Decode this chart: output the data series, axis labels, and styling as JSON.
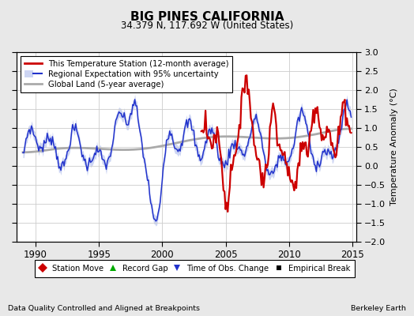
{
  "title": "BIG PINES CALIFORNIA",
  "subtitle": "34.379 N, 117.692 W (United States)",
  "ylabel": "Temperature Anomaly (°C)",
  "xlabel_left": "Data Quality Controlled and Aligned at Breakpoints",
  "xlabel_right": "Berkeley Earth",
  "xlim": [
    1988.5,
    2015.3
  ],
  "ylim": [
    -2,
    3
  ],
  "yticks": [
    -2,
    -1.5,
    -1,
    -0.5,
    0,
    0.5,
    1,
    1.5,
    2,
    2.5,
    3
  ],
  "xticks": [
    1990,
    1995,
    2000,
    2005,
    2010,
    2015
  ],
  "legend_station": "This Temperature Station (12-month average)",
  "legend_regional": "Regional Expectation with 95% uncertainty",
  "legend_global": "Global Land (5-year average)",
  "legend_station_move": "Station Move",
  "legend_record_gap": "Record Gap",
  "legend_obs_change": "Time of Obs. Change",
  "legend_empirical": "Empirical Break",
  "station_color": "#cc0000",
  "regional_color": "#2233cc",
  "regional_fill_color": "#b8c4ee",
  "global_color": "#aaaaaa",
  "background_color": "#e8e8e8",
  "plot_background": "#ffffff",
  "grid_color": "#cccccc"
}
